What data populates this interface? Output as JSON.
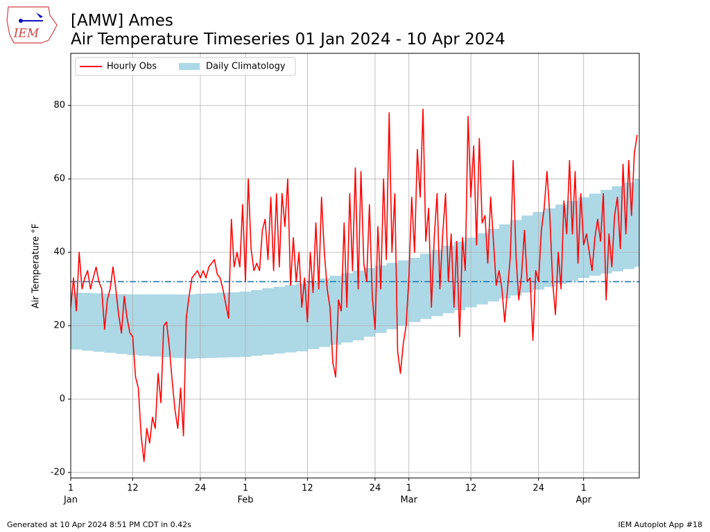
{
  "chart_data": {
    "type": "line",
    "title": [
      "[AMW] Ames",
      "Air Temperature Timeseries 01 Jan 2024 - 10 Apr 2024"
    ],
    "logo_text": "IEM",
    "ylabel": "Air Temperature °F",
    "footer_left": "Generated at 10 Apr 2024 8:51 PM CDT in 0.42s",
    "footer_right": "IEM Autoplot App #18",
    "legend": "upper left",
    "grid": true,
    "xlim": [
      "2024-01-01T00:00",
      "2024-04-10T21:00"
    ],
    "ylim": [
      -21.5,
      94.2
    ],
    "yticks": [
      -20,
      0,
      20,
      40,
      60,
      80
    ],
    "xticks": [
      {
        "value": "2024-01-01",
        "label": "1"
      },
      {
        "value": "2024-01-12",
        "label": "12"
      },
      {
        "value": "2024-01-24",
        "label": "24"
      },
      {
        "value": "2024-02-01",
        "label": "1"
      },
      {
        "value": "2024-02-12",
        "label": "12"
      },
      {
        "value": "2024-02-24",
        "label": "24"
      },
      {
        "value": "2024-03-01",
        "label": "1"
      },
      {
        "value": "2024-03-12",
        "label": "12"
      },
      {
        "value": "2024-03-24",
        "label": "24"
      },
      {
        "value": "2024-04-01",
        "label": "1"
      }
    ],
    "month_labels": [
      {
        "value": "2024-01-01",
        "label": "Jan"
      },
      {
        "value": "2024-02-01",
        "label": "Feb"
      },
      {
        "value": "2024-03-01",
        "label": "Mar"
      },
      {
        "value": "2024-04-01",
        "label": "Apr"
      }
    ],
    "reference_line": {
      "value": 32,
      "color": "#1f77b4",
      "style": "dashdot"
    },
    "climatology": {
      "name": "Daily Climatology",
      "color": "#add8e6",
      "x": [
        "2024-01-01",
        "2024-01-03",
        "2024-01-05",
        "2024-01-07",
        "2024-01-09",
        "2024-01-11",
        "2024-01-13",
        "2024-01-15",
        "2024-01-17",
        "2024-01-19",
        "2024-01-21",
        "2024-01-23",
        "2024-01-25",
        "2024-01-27",
        "2024-01-29",
        "2024-01-31",
        "2024-02-02",
        "2024-02-04",
        "2024-02-06",
        "2024-02-08",
        "2024-02-10",
        "2024-02-12",
        "2024-02-14",
        "2024-02-16",
        "2024-02-18",
        "2024-02-20",
        "2024-02-22",
        "2024-02-24",
        "2024-02-26",
        "2024-02-28",
        "2024-03-01",
        "2024-03-03",
        "2024-03-05",
        "2024-03-07",
        "2024-03-09",
        "2024-03-11",
        "2024-03-13",
        "2024-03-15",
        "2024-03-17",
        "2024-03-19",
        "2024-03-21",
        "2024-03-23",
        "2024-03-25",
        "2024-03-27",
        "2024-03-29",
        "2024-03-31",
        "2024-04-02",
        "2024-04-04",
        "2024-04-06",
        "2024-04-08",
        "2024-04-10"
      ],
      "low": [
        13.5,
        13.2,
        12.9,
        12.6,
        12.3,
        12.0,
        11.8,
        11.6,
        11.4,
        11.2,
        11.0,
        11.1,
        11.2,
        11.3,
        11.4,
        11.5,
        11.8,
        12.1,
        12.4,
        12.7,
        13.0,
        13.6,
        14.2,
        14.8,
        15.4,
        16.0,
        17.0,
        18.0,
        19.0,
        20.0,
        21.0,
        21.8,
        22.6,
        23.4,
        24.2,
        25.0,
        25.8,
        26.6,
        27.4,
        28.2,
        29.0,
        29.8,
        30.6,
        31.4,
        32.2,
        33.0,
        33.6,
        34.2,
        34.8,
        35.4,
        36.0
      ],
      "high": [
        29,
        28.9,
        28.8,
        28.7,
        28.6,
        28.5,
        28.5,
        28.5,
        28.5,
        28.5,
        28.5,
        28.7,
        28.8,
        29.0,
        29.1,
        29.3,
        29.7,
        30.2,
        30.6,
        31.1,
        31.5,
        32.2,
        32.9,
        33.6,
        34.3,
        35.0,
        35.7,
        36.4,
        37.1,
        37.8,
        38.5,
        39.6,
        40.7,
        41.8,
        42.9,
        44.0,
        45.2,
        46.4,
        47.6,
        48.8,
        50.0,
        51.0,
        52.0,
        53.0,
        54.0,
        55.0,
        56.0,
        57.0,
        58.0,
        59.0,
        60.0
      ]
    },
    "series": [
      {
        "name": "Hourly Obs",
        "color": "#ff0000",
        "x": [
          "2024-01-01T00:00",
          "2024-01-01T12:00",
          "2024-01-02T00:00",
          "2024-01-02T12:00",
          "2024-01-03T00:00",
          "2024-01-03T12:00",
          "2024-01-04T00:00",
          "2024-01-04T12:00",
          "2024-01-05T00:00",
          "2024-01-05T12:00",
          "2024-01-06T00:00",
          "2024-01-06T12:00",
          "2024-01-07T00:00",
          "2024-01-07T12:00",
          "2024-01-08T00:00",
          "2024-01-08T12:00",
          "2024-01-09T00:00",
          "2024-01-09T12:00",
          "2024-01-10T00:00",
          "2024-01-10T12:00",
          "2024-01-11T00:00",
          "2024-01-11T12:00",
          "2024-01-12T00:00",
          "2024-01-12T12:00",
          "2024-01-13T00:00",
          "2024-01-13T12:00",
          "2024-01-14T00:00",
          "2024-01-14T12:00",
          "2024-01-15T00:00",
          "2024-01-15T12:00",
          "2024-01-16T00:00",
          "2024-01-16T12:00",
          "2024-01-17T00:00",
          "2024-01-17T12:00",
          "2024-01-18T00:00",
          "2024-01-18T12:00",
          "2024-01-19T00:00",
          "2024-01-19T12:00",
          "2024-01-20T00:00",
          "2024-01-20T12:00",
          "2024-01-21T00:00",
          "2024-01-21T12:00",
          "2024-01-22T00:00",
          "2024-01-22T12:00",
          "2024-01-23T00:00",
          "2024-01-23T12:00",
          "2024-01-24T00:00",
          "2024-01-24T12:00",
          "2024-01-25T00:00",
          "2024-01-25T12:00",
          "2024-01-26T00:00",
          "2024-01-26T12:00",
          "2024-01-27T00:00",
          "2024-01-27T12:00",
          "2024-01-28T00:00",
          "2024-01-28T12:00",
          "2024-01-29T00:00",
          "2024-01-29T12:00",
          "2024-01-30T00:00",
          "2024-01-30T12:00",
          "2024-01-31T00:00",
          "2024-01-31T12:00",
          "2024-02-01T00:00",
          "2024-02-01T12:00",
          "2024-02-02T00:00",
          "2024-02-02T12:00",
          "2024-02-03T00:00",
          "2024-02-03T12:00",
          "2024-02-04T00:00",
          "2024-02-04T12:00",
          "2024-02-05T00:00",
          "2024-02-05T12:00",
          "2024-02-06T00:00",
          "2024-02-06T12:00",
          "2024-02-07T00:00",
          "2024-02-07T12:00",
          "2024-02-08T00:00",
          "2024-02-08T12:00",
          "2024-02-09T00:00",
          "2024-02-09T12:00",
          "2024-02-10T00:00",
          "2024-02-10T12:00",
          "2024-02-11T00:00",
          "2024-02-11T12:00",
          "2024-02-12T00:00",
          "2024-02-12T12:00",
          "2024-02-13T00:00",
          "2024-02-13T12:00",
          "2024-02-14T00:00",
          "2024-02-14T12:00",
          "2024-02-15T00:00",
          "2024-02-15T12:00",
          "2024-02-16T00:00",
          "2024-02-16T12:00",
          "2024-02-17T00:00",
          "2024-02-17T12:00",
          "2024-02-18T00:00",
          "2024-02-18T12:00",
          "2024-02-19T00:00",
          "2024-02-19T12:00",
          "2024-02-20T00:00",
          "2024-02-20T12:00",
          "2024-02-21T00:00",
          "2024-02-21T12:00",
          "2024-02-22T00:00",
          "2024-02-22T12:00",
          "2024-02-23T00:00",
          "2024-02-23T12:00",
          "2024-02-24T00:00",
          "2024-02-24T12:00",
          "2024-02-25T00:00",
          "2024-02-25T12:00",
          "2024-02-26T00:00",
          "2024-02-26T12:00",
          "2024-02-27T00:00",
          "2024-02-27T12:00",
          "2024-02-28T00:00",
          "2024-02-28T12:00",
          "2024-02-29T00:00",
          "2024-02-29T12:00",
          "2024-03-01T00:00",
          "2024-03-01T12:00",
          "2024-03-02T00:00",
          "2024-03-02T12:00",
          "2024-03-03T00:00",
          "2024-03-03T12:00",
          "2024-03-04T00:00",
          "2024-03-04T12:00",
          "2024-03-05T00:00",
          "2024-03-05T12:00",
          "2024-03-06T00:00",
          "2024-03-06T12:00",
          "2024-03-07T00:00",
          "2024-03-07T12:00",
          "2024-03-08T00:00",
          "2024-03-08T12:00",
          "2024-03-09T00:00",
          "2024-03-09T12:00",
          "2024-03-10T00:00",
          "2024-03-10T12:00",
          "2024-03-11T00:00",
          "2024-03-11T12:00",
          "2024-03-12T00:00",
          "2024-03-12T12:00",
          "2024-03-13T00:00",
          "2024-03-13T12:00",
          "2024-03-14T00:00",
          "2024-03-14T12:00",
          "2024-03-15T00:00",
          "2024-03-15T12:00",
          "2024-03-16T00:00",
          "2024-03-16T12:00",
          "2024-03-17T00:00",
          "2024-03-17T12:00",
          "2024-03-18T00:00",
          "2024-03-18T12:00",
          "2024-03-19T00:00",
          "2024-03-19T12:00",
          "2024-03-20T00:00",
          "2024-03-20T12:00",
          "2024-03-21T00:00",
          "2024-03-21T12:00",
          "2024-03-22T00:00",
          "2024-03-22T12:00",
          "2024-03-23T00:00",
          "2024-03-23T12:00",
          "2024-03-24T00:00",
          "2024-03-24T12:00",
          "2024-03-25T00:00",
          "2024-03-25T12:00",
          "2024-03-26T00:00",
          "2024-03-26T12:00",
          "2024-03-27T00:00",
          "2024-03-27T12:00",
          "2024-03-28T00:00",
          "2024-03-28T12:00",
          "2024-03-29T00:00",
          "2024-03-29T12:00",
          "2024-03-30T00:00",
          "2024-03-30T12:00",
          "2024-03-31T00:00",
          "2024-03-31T12:00",
          "2024-04-01T00:00",
          "2024-04-01T12:00",
          "2024-04-02T00:00",
          "2024-04-02T12:00",
          "2024-04-03T00:00",
          "2024-04-03T12:00",
          "2024-04-04T00:00",
          "2024-04-04T12:00",
          "2024-04-05T00:00",
          "2024-04-05T12:00",
          "2024-04-06T00:00",
          "2024-04-06T12:00",
          "2024-04-07T00:00",
          "2024-04-07T12:00",
          "2024-04-08T00:00",
          "2024-04-08T12:00",
          "2024-04-09T00:00",
          "2024-04-09T12:00",
          "2024-04-10T00:00",
          "2024-04-10T12:00"
        ],
        "values": [
          25,
          33,
          24,
          40,
          30,
          33,
          35,
          30,
          33,
          36,
          32,
          30,
          19,
          27,
          30,
          36,
          30,
          23,
          18,
          28,
          22,
          18,
          17,
          6,
          3,
          -10,
          -17,
          -8,
          -12,
          -5,
          -8,
          7,
          -1,
          20,
          21,
          14,
          5,
          -3,
          -8,
          3,
          -10,
          22,
          28,
          33,
          34,
          35,
          33,
          35,
          33,
          36,
          37,
          38,
          34,
          33,
          30,
          26,
          22,
          49,
          36,
          40,
          36,
          53,
          32,
          60,
          41,
          35,
          37,
          35,
          46,
          49,
          38,
          55,
          35,
          56,
          36,
          56,
          47,
          60,
          31,
          44,
          32,
          40,
          25,
          33,
          21,
          40,
          29,
          48,
          30,
          55,
          40,
          30,
          25,
          10,
          6,
          27,
          24,
          48,
          25,
          56,
          35,
          63,
          30,
          62,
          37,
          32,
          53,
          28,
          19,
          47,
          30,
          60,
          38,
          78,
          40,
          56,
          13,
          7,
          15,
          20,
          33,
          55,
          40,
          68,
          55,
          79,
          43,
          52,
          25,
          44,
          56,
          30,
          45,
          56,
          32,
          45,
          25,
          43,
          17,
          44,
          35,
          77,
          55,
          69,
          42,
          71,
          48,
          50,
          37,
          55,
          43,
          31,
          35,
          30,
          21,
          30,
          39,
          65,
          39,
          27,
          34,
          46,
          32,
          33,
          16,
          35,
          32,
          46,
          52,
          62,
          50,
          32,
          23,
          40,
          30,
          54,
          45,
          65,
          45,
          62,
          37,
          56,
          42,
          45,
          40,
          35,
          44,
          49,
          43,
          56,
          27,
          45,
          36,
          50,
          55,
          41,
          64,
          45,
          65,
          50,
          67,
          72
        ]
      }
    ]
  }
}
